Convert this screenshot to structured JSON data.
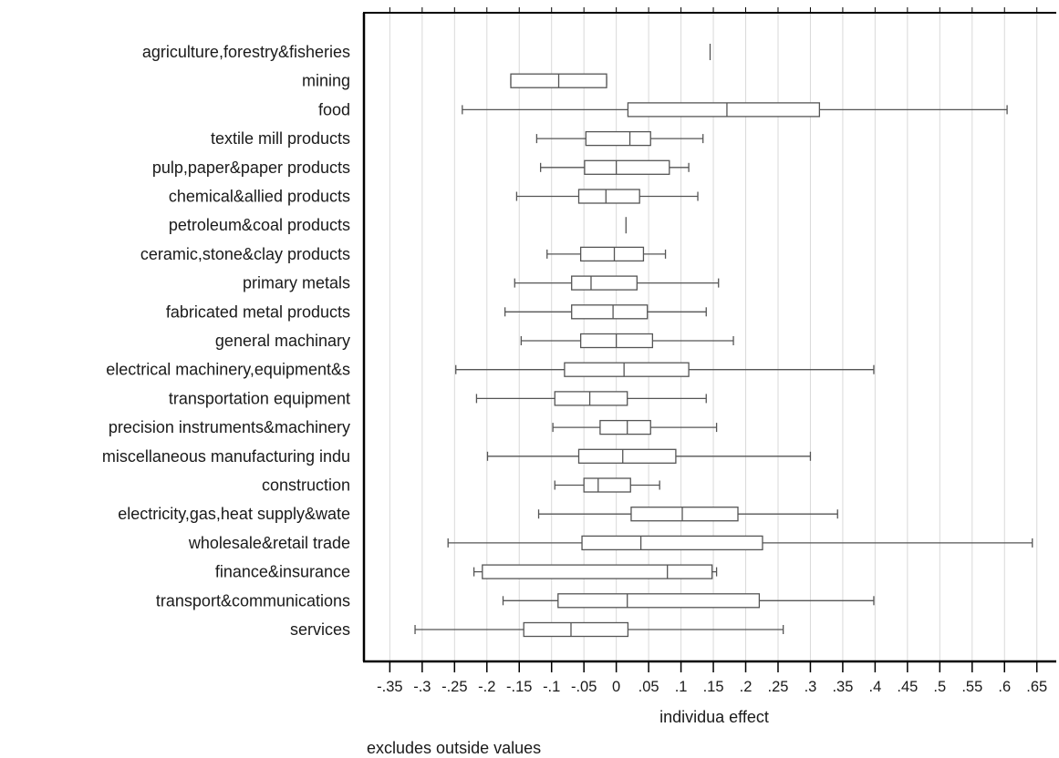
{
  "chart_data": {
    "type": "box",
    "orientation": "horizontal",
    "xlabel": "individua effect",
    "note": "excludes outside values",
    "xlim": [
      -0.39,
      0.68
    ],
    "x_ticks": [
      {
        "value": -0.35,
        "label": "-.35"
      },
      {
        "value": -0.3,
        "label": "-.3"
      },
      {
        "value": -0.25,
        "label": "-.25"
      },
      {
        "value": -0.2,
        "label": "-.2"
      },
      {
        "value": -0.15,
        "label": "-.15"
      },
      {
        "value": -0.1,
        "label": "-.1"
      },
      {
        "value": -0.05,
        "label": "-.05"
      },
      {
        "value": 0,
        "label": "0"
      },
      {
        "value": 0.05,
        "label": ".05"
      },
      {
        "value": 0.1,
        "label": ".1"
      },
      {
        "value": 0.15,
        "label": ".15"
      },
      {
        "value": 0.2,
        "label": ".2"
      },
      {
        "value": 0.25,
        "label": ".25"
      },
      {
        "value": 0.3,
        "label": ".3"
      },
      {
        "value": 0.35,
        "label": ".35"
      },
      {
        "value": 0.4,
        "label": ".4"
      },
      {
        "value": 0.45,
        "label": ".45"
      },
      {
        "value": 0.5,
        "label": ".5"
      },
      {
        "value": 0.55,
        "label": ".55"
      },
      {
        "value": 0.6,
        "label": ".6"
      },
      {
        "value": 0.65,
        "label": ".65"
      }
    ],
    "grid": "vertical",
    "colors": {
      "box": "#555555",
      "grid": "#d9d9d9",
      "axis": "#000000"
    },
    "categories": [
      "agriculture,forestry&fisheries",
      "mining",
      "food",
      "textile mill products",
      "pulp,paper&paper products",
      "chemical&allied products",
      "petroleum&coal products",
      "ceramic,stone&clay products",
      "primary metals",
      "fabricated metal products",
      "general machinary",
      "electrical machinery,equipment&s",
      "transportation equipment",
      "precision instruments&machinery",
      "miscellaneous manufacturing indu",
      "construction",
      "electricity,gas,heat supply&wate",
      "wholesale&retail trade",
      "finance&insurance",
      "transport&communications",
      "services"
    ],
    "boxes": [
      {
        "min": 0.145,
        "q1": 0.145,
        "median": 0.145,
        "q3": 0.145,
        "max": 0.145
      },
      {
        "min": -0.163,
        "q1": -0.163,
        "median": -0.089,
        "q3": -0.015,
        "max": -0.015
      },
      {
        "min": -0.238,
        "q1": 0.018,
        "median": 0.171,
        "q3": 0.314,
        "max": 0.604
      },
      {
        "min": -0.123,
        "q1": -0.047,
        "median": 0.021,
        "q3": 0.053,
        "max": 0.134
      },
      {
        "min": -0.117,
        "q1": -0.049,
        "median": 0.0,
        "q3": 0.082,
        "max": 0.112
      },
      {
        "min": -0.154,
        "q1": -0.058,
        "median": -0.016,
        "q3": 0.036,
        "max": 0.126
      },
      {
        "min": 0.015,
        "q1": 0.015,
        "median": 0.015,
        "q3": 0.015,
        "max": 0.015
      },
      {
        "min": -0.107,
        "q1": -0.055,
        "median": -0.003,
        "q3": 0.042,
        "max": 0.076
      },
      {
        "min": -0.157,
        "q1": -0.069,
        "median": -0.039,
        "q3": 0.032,
        "max": 0.158
      },
      {
        "min": -0.172,
        "q1": -0.069,
        "median": -0.005,
        "q3": 0.048,
        "max": 0.139
      },
      {
        "min": -0.147,
        "q1": -0.055,
        "median": 0.0,
        "q3": 0.056,
        "max": 0.181
      },
      {
        "min": -0.248,
        "q1": -0.08,
        "median": 0.012,
        "q3": 0.112,
        "max": 0.398
      },
      {
        "min": -0.216,
        "q1": -0.095,
        "median": -0.041,
        "q3": 0.017,
        "max": 0.139
      },
      {
        "min": -0.098,
        "q1": -0.025,
        "median": 0.017,
        "q3": 0.053,
        "max": 0.155
      },
      {
        "min": -0.199,
        "q1": -0.058,
        "median": 0.01,
        "q3": 0.092,
        "max": 0.3
      },
      {
        "min": -0.095,
        "q1": -0.05,
        "median": -0.028,
        "q3": 0.022,
        "max": 0.067
      },
      {
        "min": -0.12,
        "q1": 0.023,
        "median": 0.102,
        "q3": 0.188,
        "max": 0.342
      },
      {
        "min": -0.26,
        "q1": -0.053,
        "median": 0.038,
        "q3": 0.226,
        "max": 0.643
      },
      {
        "min": -0.22,
        "q1": -0.207,
        "median": 0.079,
        "q3": 0.148,
        "max": 0.155
      },
      {
        "min": -0.175,
        "q1": -0.09,
        "median": 0.017,
        "q3": 0.221,
        "max": 0.398
      },
      {
        "min": -0.311,
        "q1": -0.143,
        "median": -0.07,
        "q3": 0.018,
        "max": 0.258
      }
    ]
  }
}
